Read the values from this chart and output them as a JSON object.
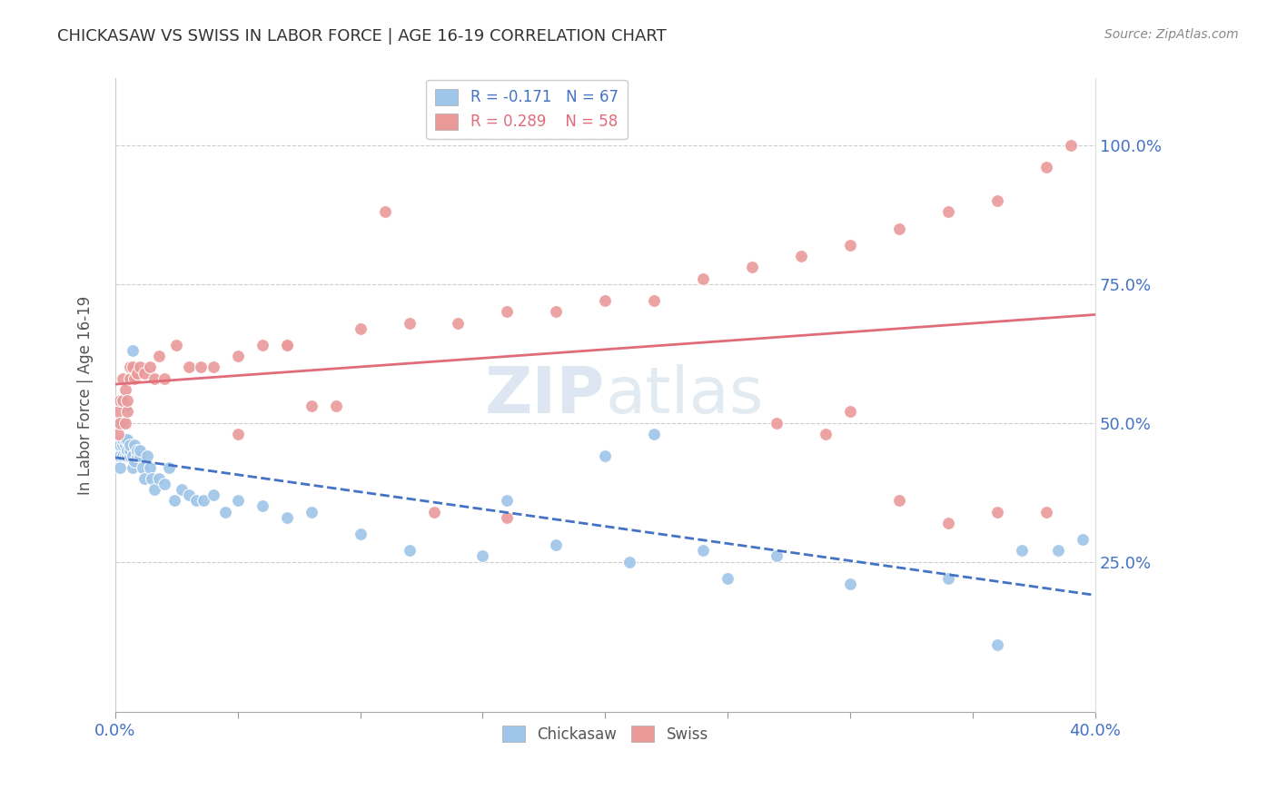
{
  "title": "CHICKASAW VS SWISS IN LABOR FORCE | AGE 16-19 CORRELATION CHART",
  "source": "Source: ZipAtlas.com",
  "ylabel": "In Labor Force | Age 16-19",
  "xlim": [
    0.0,
    0.4
  ],
  "ylim": [
    0.0,
    1.1
  ],
  "color_chickasaw": "#9fc5e8",
  "color_swiss": "#ea9999",
  "color_line_chickasaw": "#4472c4",
  "color_line_swiss": "#e06c7a",
  "watermark_color": "#c8d8e8",
  "chickasaw_x": [
    0.001,
    0.001,
    0.001,
    0.002,
    0.002,
    0.002,
    0.002,
    0.003,
    0.003,
    0.003,
    0.003,
    0.004,
    0.004,
    0.004,
    0.004,
    0.005,
    0.005,
    0.005,
    0.006,
    0.006,
    0.006,
    0.007,
    0.007,
    0.007,
    0.008,
    0.008,
    0.009,
    0.009,
    0.01,
    0.01,
    0.011,
    0.012,
    0.013,
    0.014,
    0.015,
    0.016,
    0.018,
    0.02,
    0.022,
    0.024,
    0.027,
    0.03,
    0.033,
    0.036,
    0.04,
    0.045,
    0.05,
    0.06,
    0.07,
    0.08,
    0.1,
    0.12,
    0.15,
    0.18,
    0.21,
    0.24,
    0.27,
    0.3,
    0.34,
    0.36,
    0.37,
    0.385,
    0.395,
    0.2,
    0.16,
    0.22,
    0.25
  ],
  "chickasaw_y": [
    0.44,
    0.46,
    0.5,
    0.44,
    0.46,
    0.5,
    0.42,
    0.44,
    0.46,
    0.47,
    0.5,
    0.44,
    0.46,
    0.47,
    0.53,
    0.44,
    0.45,
    0.47,
    0.44,
    0.45,
    0.46,
    0.42,
    0.44,
    0.63,
    0.43,
    0.46,
    0.44,
    0.45,
    0.44,
    0.45,
    0.42,
    0.4,
    0.44,
    0.42,
    0.4,
    0.38,
    0.4,
    0.39,
    0.42,
    0.36,
    0.38,
    0.37,
    0.36,
    0.36,
    0.37,
    0.34,
    0.36,
    0.35,
    0.33,
    0.34,
    0.3,
    0.27,
    0.26,
    0.28,
    0.25,
    0.27,
    0.26,
    0.21,
    0.22,
    0.1,
    0.27,
    0.27,
    0.29,
    0.44,
    0.36,
    0.48,
    0.22
  ],
  "swiss_x": [
    0.001,
    0.001,
    0.002,
    0.002,
    0.003,
    0.003,
    0.004,
    0.004,
    0.005,
    0.005,
    0.006,
    0.006,
    0.007,
    0.008,
    0.009,
    0.01,
    0.012,
    0.014,
    0.016,
    0.018,
    0.02,
    0.025,
    0.03,
    0.035,
    0.04,
    0.05,
    0.06,
    0.07,
    0.08,
    0.1,
    0.12,
    0.14,
    0.16,
    0.18,
    0.2,
    0.22,
    0.24,
    0.26,
    0.28,
    0.3,
    0.32,
    0.34,
    0.36,
    0.38,
    0.39,
    0.3,
    0.27,
    0.29,
    0.32,
    0.36,
    0.34,
    0.38,
    0.16,
    0.13,
    0.11,
    0.09,
    0.07,
    0.05
  ],
  "swiss_y": [
    0.48,
    0.52,
    0.5,
    0.54,
    0.54,
    0.58,
    0.5,
    0.56,
    0.52,
    0.54,
    0.58,
    0.6,
    0.6,
    0.58,
    0.59,
    0.6,
    0.59,
    0.6,
    0.58,
    0.62,
    0.58,
    0.64,
    0.6,
    0.6,
    0.6,
    0.62,
    0.64,
    0.64,
    0.53,
    0.67,
    0.68,
    0.68,
    0.7,
    0.7,
    0.72,
    0.72,
    0.76,
    0.78,
    0.8,
    0.82,
    0.85,
    0.88,
    0.9,
    0.96,
    1.0,
    0.52,
    0.5,
    0.48,
    0.36,
    0.34,
    0.32,
    0.34,
    0.33,
    0.34,
    0.88,
    0.53,
    0.64,
    0.48
  ]
}
